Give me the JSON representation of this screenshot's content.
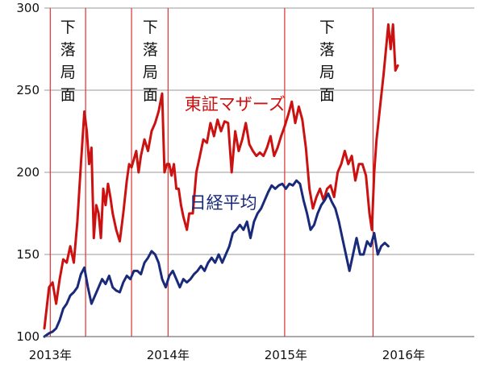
{
  "chart_data": {
    "type": "line",
    "title": "",
    "xlabel": "",
    "ylabel": "",
    "x_unit": "year (decimal)",
    "xlim": [
      2012.95,
      2016.6
    ],
    "ylim": [
      100,
      300
    ],
    "y_ticks": [
      100,
      150,
      200,
      250,
      300
    ],
    "x_ticks": [
      {
        "value": 2013,
        "label": "2013年"
      },
      {
        "value": 2014,
        "label": "2014年"
      },
      {
        "value": 2015,
        "label": "2015年"
      },
      {
        "value": 2016,
        "label": "2016年"
      }
    ],
    "grid": "horizontal",
    "phase_lines": [
      2013.0,
      2013.3,
      2013.69,
      2014.0,
      2014.99,
      2015.74
    ],
    "phase_annotations": [
      {
        "text": "下落局面",
        "x": 2013.15
      },
      {
        "text": "下落局面",
        "x": 2013.85
      },
      {
        "text": "下落局面",
        "x": 2015.35
      }
    ],
    "series": [
      {
        "name": "東証マザーズ",
        "color": "#cc1111",
        "points": [
          [
            2012.95,
            105
          ],
          [
            2012.99,
            130
          ],
          [
            2013.02,
            133
          ],
          [
            2013.05,
            120
          ],
          [
            2013.08,
            135
          ],
          [
            2013.11,
            147
          ],
          [
            2013.14,
            145
          ],
          [
            2013.17,
            155
          ],
          [
            2013.2,
            145
          ],
          [
            2013.23,
            170
          ],
          [
            2013.26,
            205
          ],
          [
            2013.29,
            237
          ],
          [
            2013.31,
            225
          ],
          [
            2013.33,
            205
          ],
          [
            2013.35,
            215
          ],
          [
            2013.37,
            160
          ],
          [
            2013.39,
            180
          ],
          [
            2013.41,
            175
          ],
          [
            2013.43,
            160
          ],
          [
            2013.45,
            190
          ],
          [
            2013.47,
            180
          ],
          [
            2013.49,
            193
          ],
          [
            2013.51,
            185
          ],
          [
            2013.53,
            175
          ],
          [
            2013.56,
            165
          ],
          [
            2013.59,
            158
          ],
          [
            2013.62,
            175
          ],
          [
            2013.65,
            195
          ],
          [
            2013.67,
            205
          ],
          [
            2013.69,
            203
          ],
          [
            2013.71,
            208
          ],
          [
            2013.73,
            213
          ],
          [
            2013.75,
            200
          ],
          [
            2013.77,
            210
          ],
          [
            2013.8,
            220
          ],
          [
            2013.83,
            213
          ],
          [
            2013.86,
            225
          ],
          [
            2013.89,
            230
          ],
          [
            2013.92,
            237
          ],
          [
            2013.95,
            248
          ],
          [
            2013.97,
            200
          ],
          [
            2013.99,
            205
          ],
          [
            2014.01,
            205
          ],
          [
            2014.03,
            198
          ],
          [
            2014.05,
            205
          ],
          [
            2014.07,
            190
          ],
          [
            2014.09,
            190
          ],
          [
            2014.11,
            180
          ],
          [
            2014.13,
            173
          ],
          [
            2014.16,
            165
          ],
          [
            2014.18,
            175
          ],
          [
            2014.21,
            175
          ],
          [
            2014.24,
            200
          ],
          [
            2014.27,
            210
          ],
          [
            2014.3,
            220
          ],
          [
            2014.33,
            218
          ],
          [
            2014.36,
            230
          ],
          [
            2014.39,
            222
          ],
          [
            2014.42,
            232
          ],
          [
            2014.45,
            225
          ],
          [
            2014.48,
            231
          ],
          [
            2014.51,
            230
          ],
          [
            2014.54,
            200
          ],
          [
            2014.57,
            225
          ],
          [
            2014.6,
            213
          ],
          [
            2014.63,
            220
          ],
          [
            2014.66,
            230
          ],
          [
            2014.69,
            217
          ],
          [
            2014.72,
            213
          ],
          [
            2014.75,
            210
          ],
          [
            2014.78,
            212
          ],
          [
            2014.81,
            210
          ],
          [
            2014.84,
            215
          ],
          [
            2014.87,
            222
          ],
          [
            2014.9,
            210
          ],
          [
            2014.93,
            215
          ],
          [
            2014.96,
            222
          ],
          [
            2014.99,
            228
          ],
          [
            2015.02,
            235
          ],
          [
            2015.05,
            243
          ],
          [
            2015.08,
            230
          ],
          [
            2015.11,
            240
          ],
          [
            2015.14,
            232
          ],
          [
            2015.17,
            215
          ],
          [
            2015.2,
            190
          ],
          [
            2015.23,
            178
          ],
          [
            2015.26,
            185
          ],
          [
            2015.29,
            190
          ],
          [
            2015.32,
            183
          ],
          [
            2015.35,
            190
          ],
          [
            2015.38,
            192
          ],
          [
            2015.41,
            185
          ],
          [
            2015.44,
            200
          ],
          [
            2015.47,
            205
          ],
          [
            2015.5,
            213
          ],
          [
            2015.53,
            205
          ],
          [
            2015.56,
            210
          ],
          [
            2015.59,
            195
          ],
          [
            2015.62,
            205
          ],
          [
            2015.65,
            205
          ],
          [
            2015.68,
            198
          ],
          [
            2015.71,
            175
          ],
          [
            2015.73,
            165
          ],
          [
            2015.75,
            200
          ],
          [
            2015.77,
            220
          ],
          [
            2015.8,
            240
          ],
          [
            2015.83,
            260
          ],
          [
            2015.87,
            290
          ],
          [
            2015.89,
            275
          ],
          [
            2015.91,
            290
          ],
          [
            2015.93,
            262
          ],
          [
            2015.95,
            265
          ]
        ]
      },
      {
        "name": "日経平均",
        "color": "#1a2a7a",
        "points": [
          [
            2012.95,
            100
          ],
          [
            2012.99,
            102
          ],
          [
            2013.02,
            103
          ],
          [
            2013.05,
            105
          ],
          [
            2013.08,
            110
          ],
          [
            2013.11,
            117
          ],
          [
            2013.14,
            120
          ],
          [
            2013.17,
            125
          ],
          [
            2013.2,
            127
          ],
          [
            2013.23,
            130
          ],
          [
            2013.26,
            138
          ],
          [
            2013.29,
            142
          ],
          [
            2013.32,
            130
          ],
          [
            2013.35,
            120
          ],
          [
            2013.38,
            125
          ],
          [
            2013.41,
            130
          ],
          [
            2013.44,
            135
          ],
          [
            2013.47,
            132
          ],
          [
            2013.5,
            137
          ],
          [
            2013.53,
            130
          ],
          [
            2013.56,
            128
          ],
          [
            2013.59,
            127
          ],
          [
            2013.62,
            133
          ],
          [
            2013.65,
            137
          ],
          [
            2013.68,
            135
          ],
          [
            2013.71,
            140
          ],
          [
            2013.74,
            140
          ],
          [
            2013.77,
            138
          ],
          [
            2013.8,
            145
          ],
          [
            2013.83,
            148
          ],
          [
            2013.86,
            152
          ],
          [
            2013.89,
            150
          ],
          [
            2013.92,
            145
          ],
          [
            2013.95,
            135
          ],
          [
            2013.98,
            130
          ],
          [
            2014.01,
            137
          ],
          [
            2014.04,
            140
          ],
          [
            2014.07,
            135
          ],
          [
            2014.1,
            130
          ],
          [
            2014.13,
            135
          ],
          [
            2014.16,
            133
          ],
          [
            2014.19,
            135
          ],
          [
            2014.22,
            138
          ],
          [
            2014.25,
            140
          ],
          [
            2014.28,
            143
          ],
          [
            2014.31,
            140
          ],
          [
            2014.34,
            145
          ],
          [
            2014.37,
            148
          ],
          [
            2014.4,
            145
          ],
          [
            2014.43,
            150
          ],
          [
            2014.46,
            145
          ],
          [
            2014.49,
            150
          ],
          [
            2014.52,
            155
          ],
          [
            2014.55,
            163
          ],
          [
            2014.58,
            165
          ],
          [
            2014.61,
            168
          ],
          [
            2014.64,
            165
          ],
          [
            2014.67,
            170
          ],
          [
            2014.7,
            160
          ],
          [
            2014.73,
            170
          ],
          [
            2014.76,
            175
          ],
          [
            2014.79,
            178
          ],
          [
            2014.82,
            183
          ],
          [
            2014.85,
            188
          ],
          [
            2014.88,
            192
          ],
          [
            2014.91,
            190
          ],
          [
            2014.94,
            192
          ],
          [
            2014.97,
            193
          ],
          [
            2015.0,
            190
          ],
          [
            2015.03,
            193
          ],
          [
            2015.06,
            192
          ],
          [
            2015.09,
            195
          ],
          [
            2015.12,
            193
          ],
          [
            2015.15,
            183
          ],
          [
            2015.18,
            175
          ],
          [
            2015.21,
            165
          ],
          [
            2015.24,
            168
          ],
          [
            2015.27,
            175
          ],
          [
            2015.3,
            180
          ],
          [
            2015.33,
            183
          ],
          [
            2015.36,
            187
          ],
          [
            2015.39,
            182
          ],
          [
            2015.42,
            178
          ],
          [
            2015.45,
            170
          ],
          [
            2015.48,
            160
          ],
          [
            2015.51,
            150
          ],
          [
            2015.54,
            140
          ],
          [
            2015.57,
            150
          ],
          [
            2015.6,
            160
          ],
          [
            2015.63,
            150
          ],
          [
            2015.66,
            150
          ],
          [
            2015.69,
            158
          ],
          [
            2015.72,
            155
          ],
          [
            2015.75,
            163
          ],
          [
            2015.78,
            150
          ],
          [
            2015.81,
            155
          ],
          [
            2015.84,
            157
          ],
          [
            2015.87,
            155
          ]
        ]
      }
    ],
    "series_labels": [
      {
        "text": "東証マザーズ",
        "x": 2014.14,
        "y": 238,
        "color": "#cc1111"
      },
      {
        "text": "日経平均",
        "x": 2014.18,
        "y": 178,
        "color": "#1a2a7a"
      }
    ]
  }
}
